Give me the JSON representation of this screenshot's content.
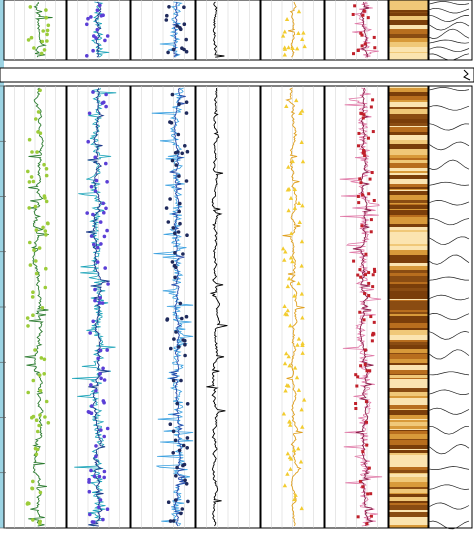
{
  "chart_data": {
    "type": "line",
    "tracks": [
      {
        "name": "",
        "line": "#2e7d32",
        "points": "#9ccc3a",
        "marker": "circle",
        "base": 0.55,
        "amp": 0.14,
        "seed": 11
      },
      {
        "name": "",
        "line": "#1e3a8a",
        "points": "#5b3fd6",
        "marker": "circle",
        "base": 0.48,
        "amp": 0.12,
        "seed": 23,
        "accent": "#1aa3b8"
      },
      {
        "name": "",
        "line": "#2a4aa8",
        "points": "#1f2a5c",
        "marker": "circle",
        "base": 0.72,
        "amp": 0.08,
        "seed": 37,
        "accent": "#3aa0e0"
      },
      {
        "name": "",
        "line": "#000000",
        "points": "#000000",
        "marker": "none",
        "base": 0.3,
        "amp": 0.1,
        "seed": 41
      },
      {
        "name": "",
        "line": "#e0a020",
        "points": "#f2cc30",
        "marker": "triangle",
        "base": 0.52,
        "amp": 0.1,
        "seed": 53
      },
      {
        "name": "",
        "line": "#8a1f4a",
        "points": "#c0202a",
        "marker": "square",
        "base": 0.62,
        "amp": 0.1,
        "seed": 67,
        "accent": "#e07aa8"
      }
    ],
    "core_image": {
      "colors": [
        "#7a3e0a",
        "#b86e1e",
        "#d89a3a",
        "#f0c878",
        "#fbe4b0",
        "#8a4c12"
      ]
    },
    "lithology_curves": {
      "count": 24
    },
    "depth_ticks": 8,
    "colors": {
      "border": "#000000",
      "grid": "#cfcfcf",
      "break_bar": "#ffffff",
      "left_strip": "#3aa8c8"
    }
  }
}
